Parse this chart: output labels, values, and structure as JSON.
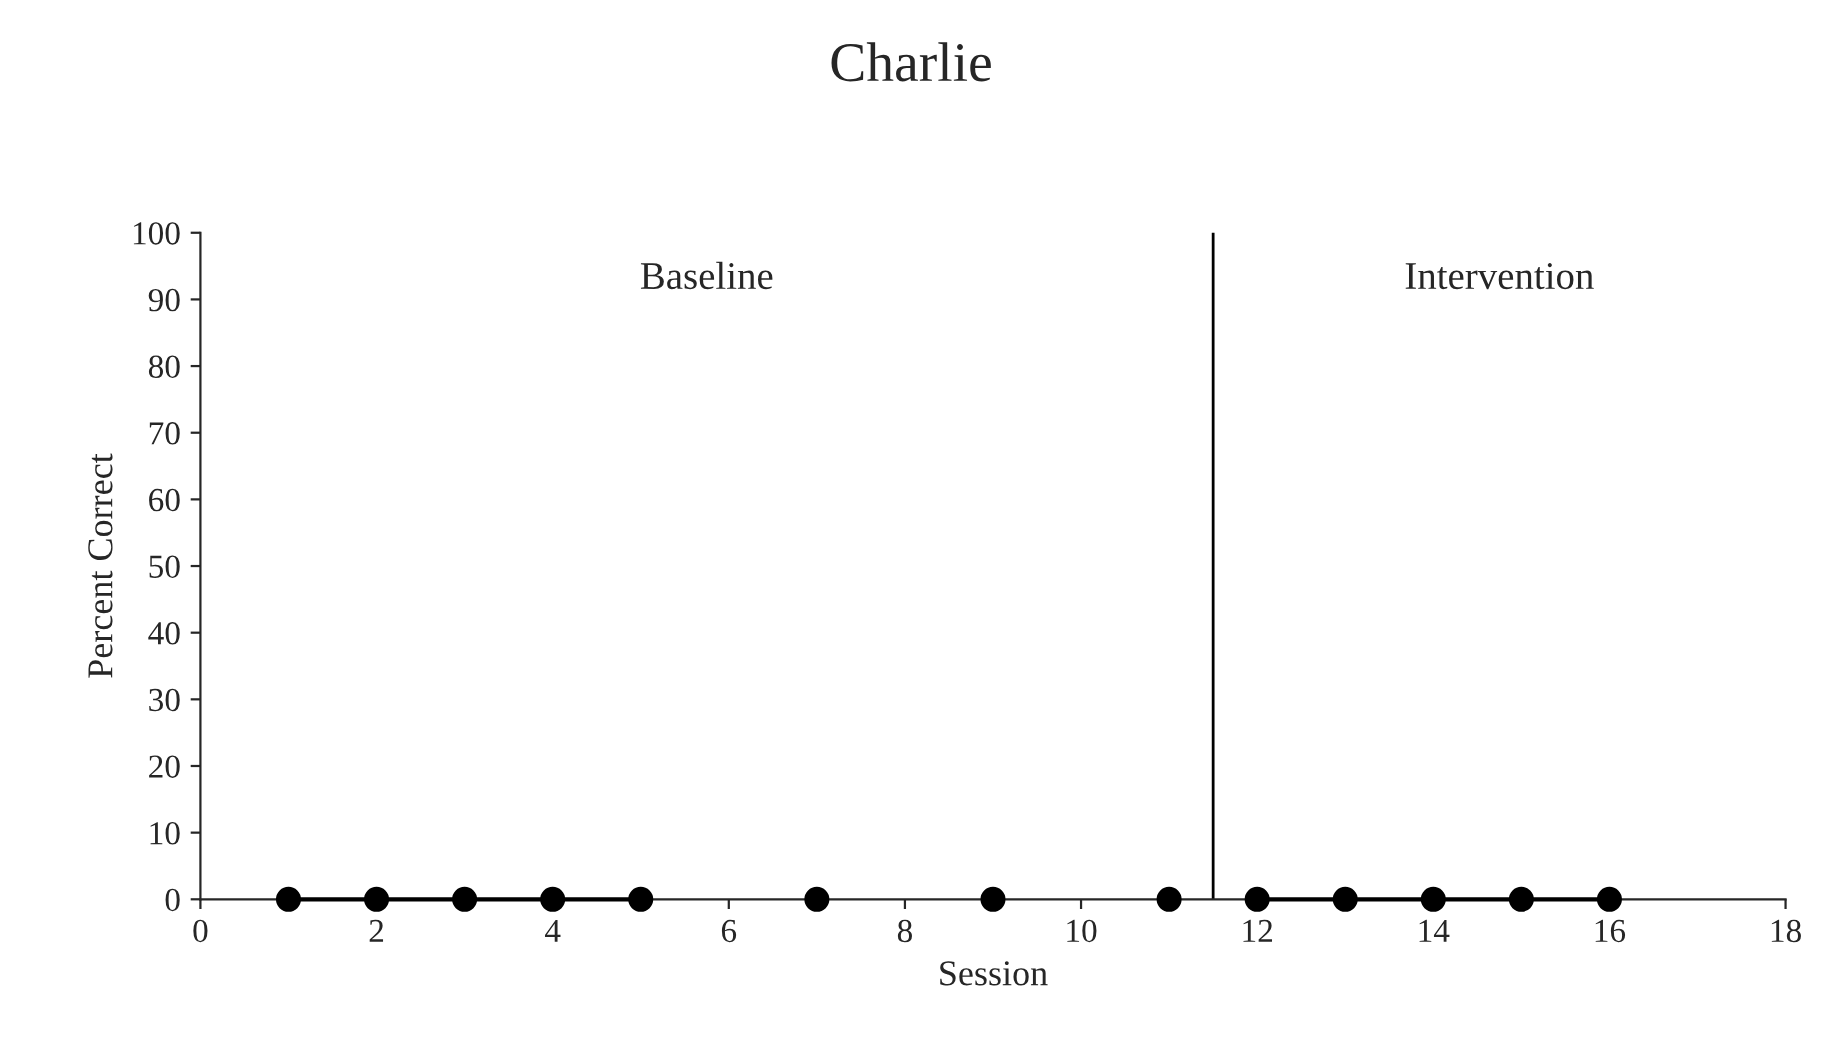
{
  "chart_data": {
    "type": "line",
    "title": "Charlie",
    "xlabel": "Session",
    "ylabel": "Percent Correct",
    "series": [
      {
        "color": "#000000",
        "x": [
          1,
          2,
          3,
          4,
          5,
          6,
          7,
          8,
          9,
          10,
          11
        ],
        "values": [
          0,
          0,
          0,
          0,
          0,
          null,
          0,
          null,
          0,
          null,
          0
        ]
      },
      {
        "color": "#000000",
        "x": [
          12,
          13,
          14,
          15,
          16
        ],
        "values": [
          0,
          0,
          0,
          0,
          0
        ]
      }
    ],
    "marker": "circle",
    "line_style": "solid",
    "grid": false,
    "legend": false,
    "xlim": [
      0,
      18
    ],
    "xticks": [
      0,
      2,
      4,
      6,
      8,
      10,
      12,
      14,
      16,
      18
    ],
    "ylim": [
      0,
      100
    ],
    "yticks": [
      0,
      10,
      20,
      30,
      40,
      50,
      60,
      70,
      80,
      90,
      100
    ],
    "ref_lines": [
      {
        "axis": "x",
        "value": 11.5,
        "color": "#000000"
      }
    ],
    "annotations": [
      "Baseline",
      "Intervention"
    ]
  }
}
